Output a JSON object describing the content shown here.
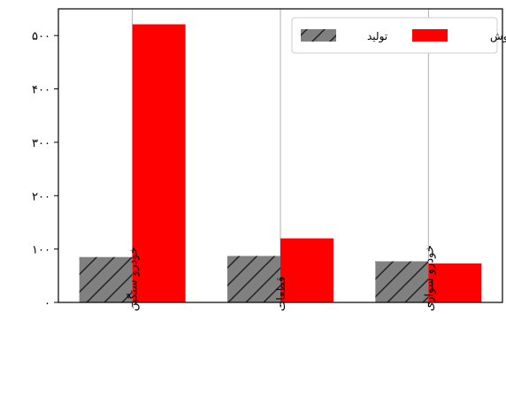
{
  "chart_data": {
    "type": "bar",
    "categories": [
      "خودرو سنگین",
      "قطعات",
      "خودرو سواری"
    ],
    "series": [
      {
        "name": "تولید",
        "values": [
          85,
          87,
          77
        ],
        "color": "#808080",
        "pattern": "hatch"
      },
      {
        "name": "فروش",
        "values": [
          521,
          120,
          73
        ],
        "color": "#ff0000",
        "pattern": "solid"
      }
    ],
    "y_ticks": [
      0,
      100,
      200,
      300,
      400,
      500
    ],
    "y_tick_labels": [
      "۰",
      "۱۰۰",
      "۲۰۰",
      "۳۰۰",
      "۴۰۰",
      "۵۰۰"
    ],
    "ylim": [
      0,
      550
    ],
    "grid": "vertical",
    "legend_position": "top-right",
    "title": "",
    "xlabel": "",
    "ylabel": ""
  }
}
